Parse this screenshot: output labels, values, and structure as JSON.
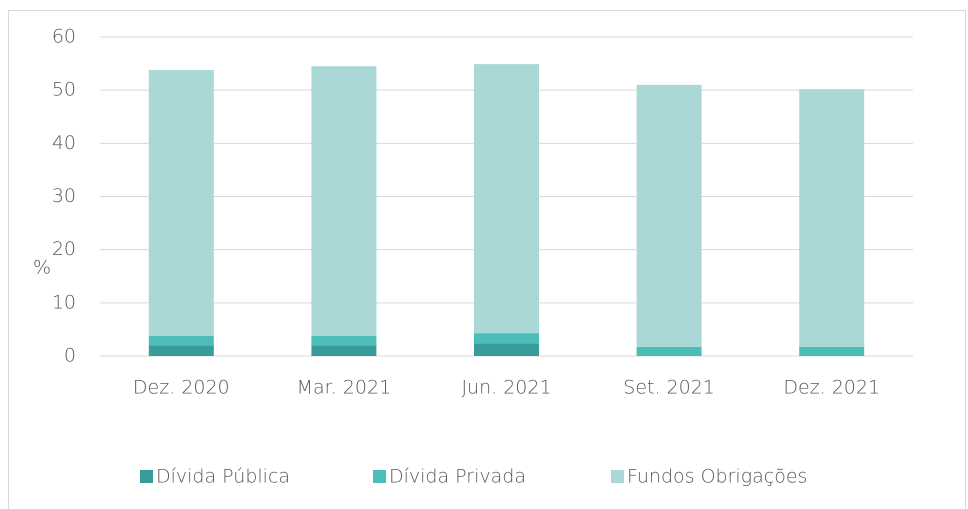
{
  "chart_data": {
    "type": "stacked_bar",
    "y_label": "%",
    "categories": [
      "Dez. 2020",
      "Mar. 2021",
      "Jun. 2021",
      "Set. 2021",
      "Dez. 2021"
    ],
    "series": [
      {
        "name": "Dívida Pública",
        "color": "#3a9c9a",
        "values": [
          2.0,
          2.0,
          2.4,
          0,
          0
        ]
      },
      {
        "name": "Dívida Privada",
        "color": "#4dbdb9",
        "values": [
          1.8,
          1.8,
          1.9,
          1.7,
          1.7
        ]
      },
      {
        "name": "Fundos Obrigações",
        "color": "#aad8d7",
        "values": [
          50.0,
          50.7,
          50.6,
          49.3,
          48.5
        ]
      }
    ],
    "ylim": [
      0,
      60
    ],
    "yticks": [
      0,
      10,
      20,
      30,
      40,
      50,
      60
    ],
    "grid": true,
    "legend": "bottom"
  }
}
